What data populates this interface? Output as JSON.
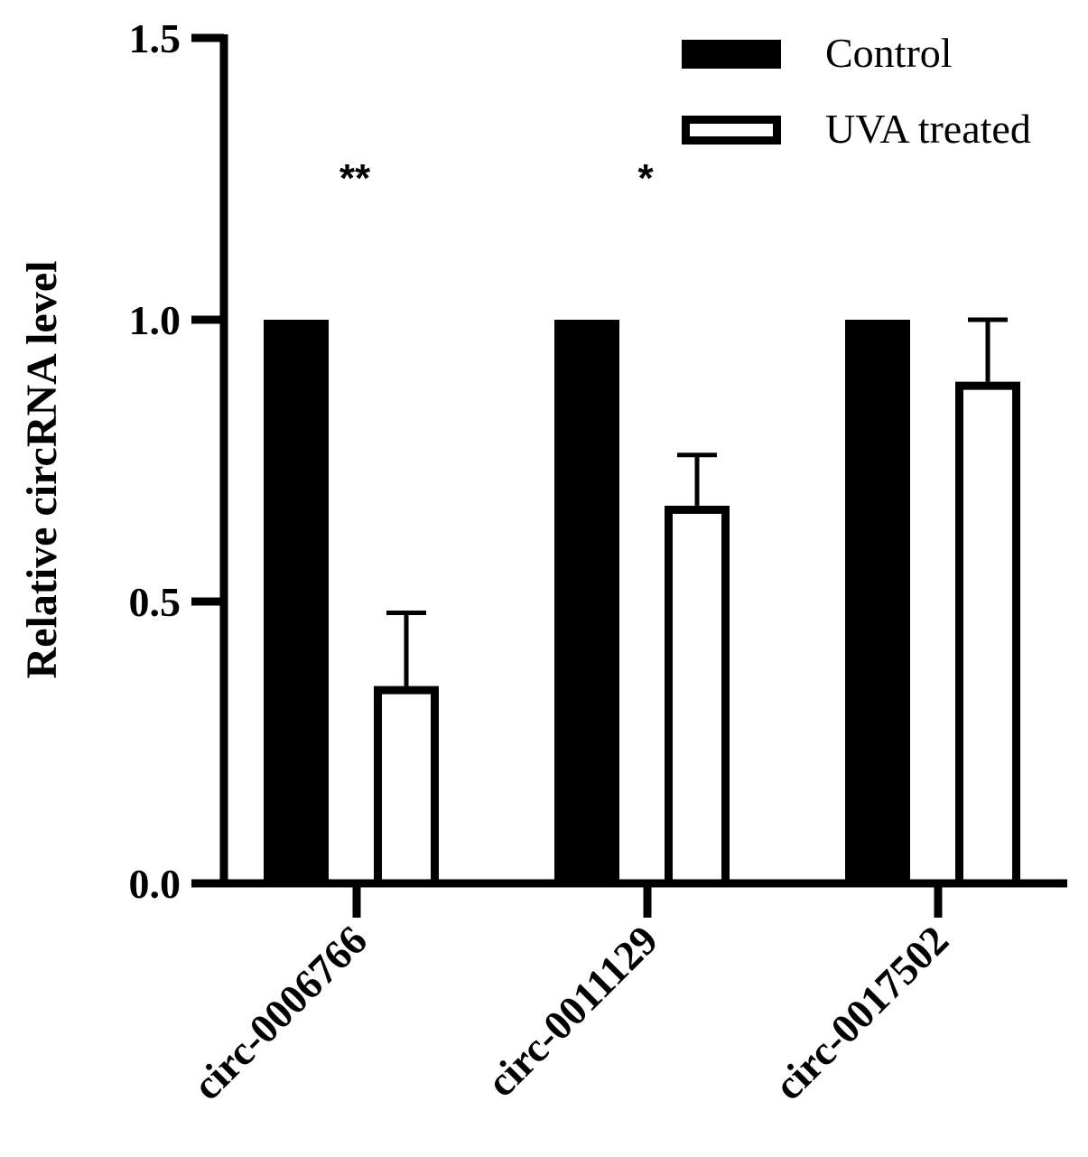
{
  "chart_data": {
    "type": "bar",
    "title": "",
    "xlabel": "",
    "ylabel": "Relative  circRNA  level",
    "ylim": [
      0,
      1.5
    ],
    "yticks": [
      "0.0",
      "0.5",
      "1.0",
      "1.5"
    ],
    "categories": [
      "circ-0006766",
      "circ-0011129",
      "circ-0017502"
    ],
    "series": [
      {
        "name": "Control",
        "values": [
          1.0,
          1.0,
          1.0
        ],
        "errors": [
          0,
          0,
          0
        ],
        "fill": "#000000"
      },
      {
        "name": "UVA treated",
        "values": [
          0.35,
          0.67,
          0.89
        ],
        "errors": [
          0.13,
          0.09,
          0.11
        ],
        "fill": "#ffffff"
      }
    ],
    "significance": [
      "**",
      "*",
      ""
    ],
    "legend_position": "top-right",
    "grid": false
  }
}
